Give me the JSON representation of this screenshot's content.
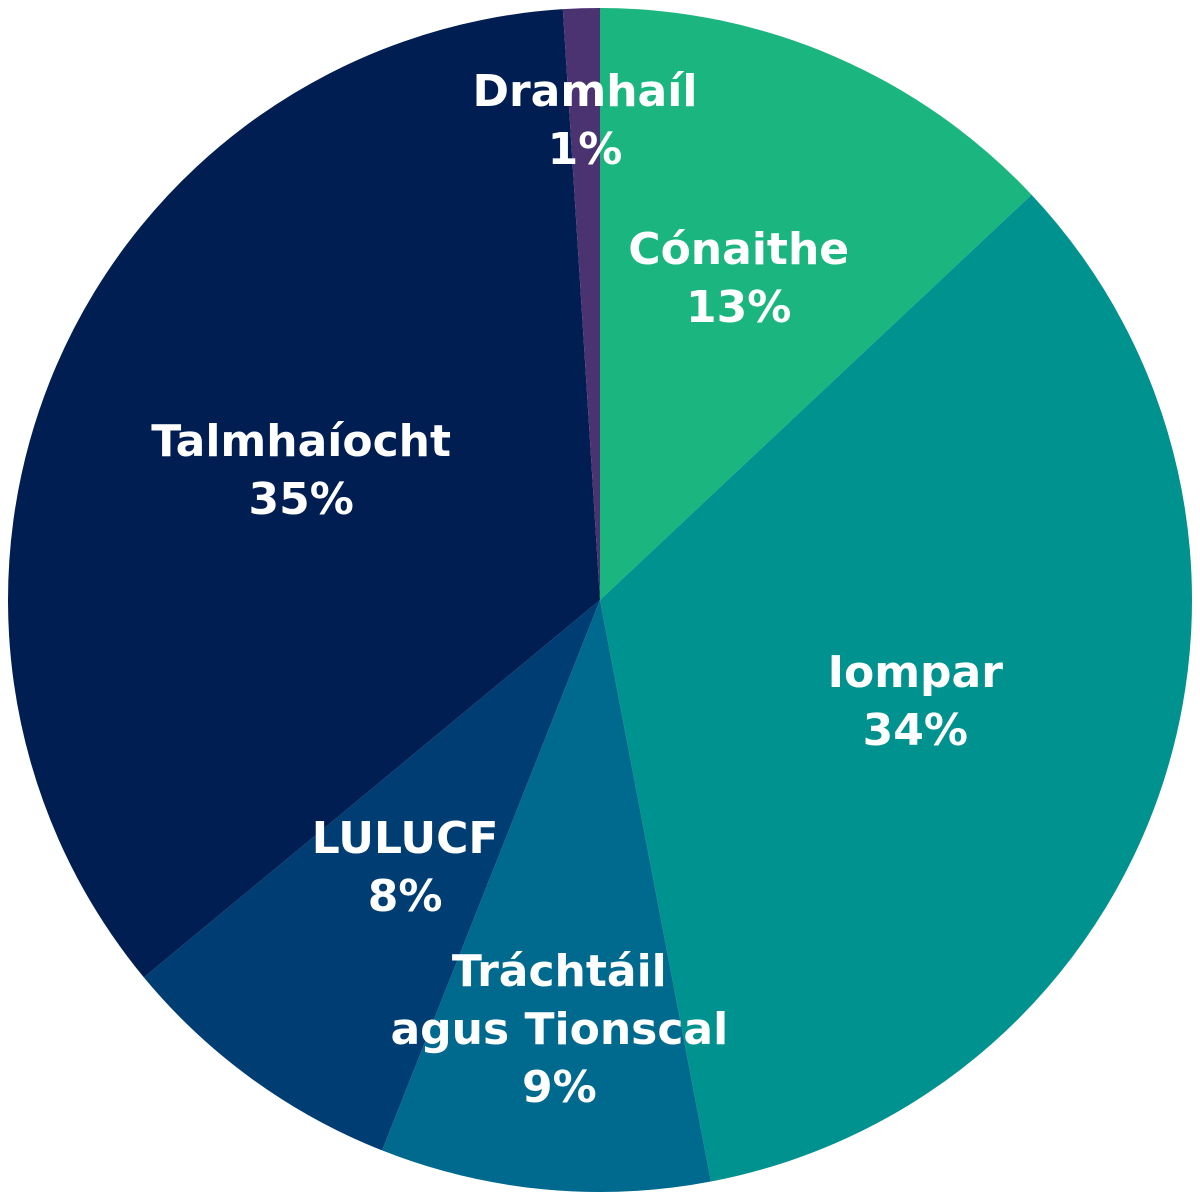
{
  "chart_data": {
    "type": "pie",
    "categories": [
      "Cónaithe",
      "Iompar",
      "Tráchtáil\nagus Tionscal",
      "LULUCF",
      "Talmhaíocht",
      "Dramhaíl"
    ],
    "values": [
      13,
      34,
      9,
      8,
      35,
      1
    ],
    "value_labels": [
      "13%",
      "34%",
      "9%",
      "8%",
      "35%",
      "1%"
    ],
    "colors": [
      "#1bb57f",
      "#00928f",
      "#006a8e",
      "#003d73",
      "#001e52",
      "#4a3370"
    ]
  }
}
